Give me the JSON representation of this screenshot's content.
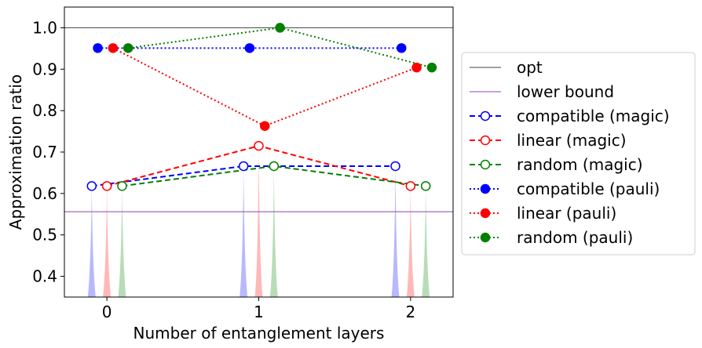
{
  "chart_data": {
    "type": "line",
    "xlabel": "Number of entanglement layers",
    "ylabel": "Approximation ratio",
    "xlim": [
      -0.28,
      2.28
    ],
    "ylim": [
      0.35,
      1.05
    ],
    "xticks": [
      0,
      1,
      2
    ],
    "yticks": [
      0.4,
      0.5,
      0.6,
      0.7,
      0.8,
      0.9,
      1.0
    ],
    "xtick_labels": [
      "0",
      "1",
      "2"
    ],
    "ytick_labels": [
      "0.4",
      "0.5",
      "0.6",
      "0.7",
      "0.8",
      "0.9",
      "1.0"
    ],
    "hlines": [
      {
        "name": "opt",
        "y": 1.0,
        "color": "#404040"
      },
      {
        "name": "lower bound",
        "y": 0.556,
        "color": "#8e44ad"
      }
    ],
    "series": [
      {
        "name": "compatible (magic)",
        "color": "#0000ff",
        "dash": "dashed",
        "marker": "open",
        "x": [
          -0.1,
          0.9,
          1.9
        ],
        "y": [
          0.618,
          0.666,
          0.666
        ]
      },
      {
        "name": "linear (magic)",
        "color": "#ff0000",
        "dash": "dashed",
        "marker": "open",
        "x": [
          0.0,
          1.0,
          2.0
        ],
        "y": [
          0.618,
          0.715,
          0.618
        ]
      },
      {
        "name": "random (magic)",
        "color": "#008000",
        "dash": "dashed",
        "marker": "open",
        "x": [
          0.1,
          1.1,
          2.1
        ],
        "y": [
          0.618,
          0.666,
          0.618
        ]
      },
      {
        "name": "compatible (pauli)",
        "color": "#0000ff",
        "dash": "dotted",
        "marker": "filled",
        "x": [
          -0.06,
          0.94,
          1.94
        ],
        "y": [
          0.951,
          0.951,
          0.951
        ]
      },
      {
        "name": "linear (pauli)",
        "color": "#ff0000",
        "dash": "dotted",
        "marker": "filled",
        "x": [
          0.04,
          1.04,
          2.04
        ],
        "y": [
          0.951,
          0.763,
          0.904
        ]
      },
      {
        "name": "random (pauli)",
        "color": "#008000",
        "dash": "dotted",
        "marker": "filled",
        "x": [
          0.14,
          1.14,
          2.14
        ],
        "y": [
          0.951,
          1.0,
          0.904
        ]
      }
    ],
    "distributions": [
      {
        "x": -0.1,
        "peak": 0.618,
        "color": "#0000ff"
      },
      {
        "x": 0.0,
        "peak": 0.618,
        "color": "#ff0000"
      },
      {
        "x": 0.1,
        "peak": 0.618,
        "color": "#008000"
      },
      {
        "x": 0.9,
        "peak": 0.666,
        "color": "#0000ff"
      },
      {
        "x": 1.0,
        "peak": 0.715,
        "color": "#ff0000"
      },
      {
        "x": 1.1,
        "peak": 0.666,
        "color": "#008000"
      },
      {
        "x": 1.9,
        "peak": 0.666,
        "color": "#0000ff"
      },
      {
        "x": 2.0,
        "peak": 0.618,
        "color": "#ff0000"
      },
      {
        "x": 2.1,
        "peak": 0.618,
        "color": "#008000"
      }
    ],
    "grid": false,
    "legend_position": "outside-right"
  }
}
